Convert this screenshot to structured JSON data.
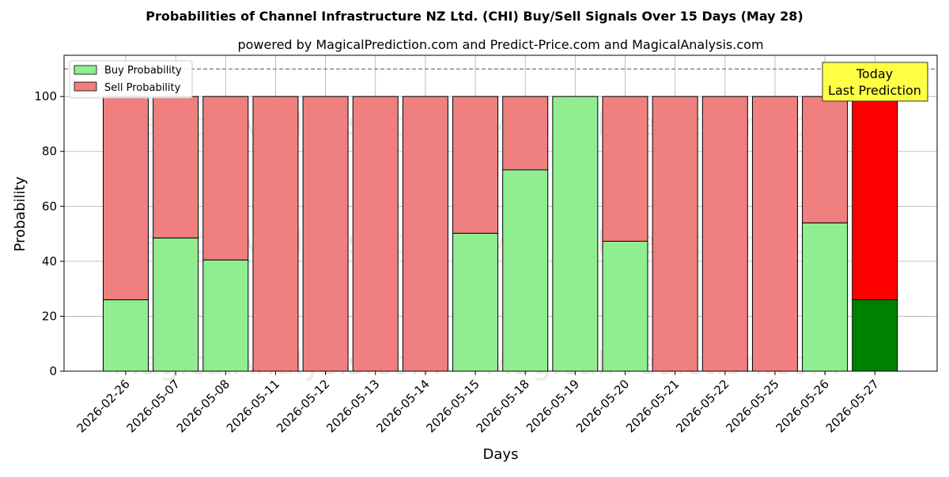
{
  "chart_data": {
    "type": "bar",
    "stacked": true,
    "title": "Probabilities of Channel Infrastructure NZ Ltd. (CHI) Buy/Sell Signals Over 15 Days (May 28)",
    "subtitle": "powered by MagicalPrediction.com and Predict-Price.com and MagicalAnalysis.com",
    "xlabel": "Days",
    "ylabel": "Probability",
    "ylim": [
      0,
      115
    ],
    "yticks": [
      0,
      20,
      40,
      60,
      80,
      100
    ],
    "reference_line": 110,
    "grid": true,
    "legend_position": "top-left",
    "categories": [
      "2026-02-26",
      "2026-05-07",
      "2026-05-08",
      "2026-05-11",
      "2026-05-12",
      "2026-05-13",
      "2026-05-14",
      "2026-05-15",
      "2026-05-18",
      "2026-05-19",
      "2026-05-20",
      "2026-05-21",
      "2026-05-22",
      "2026-05-25",
      "2026-05-26",
      "2026-05-27"
    ],
    "series": [
      {
        "name": "Buy Probability",
        "color": "#90ee90",
        "highlight_color": "#008000",
        "values": [
          26,
          48.5,
          40.5,
          0,
          0,
          0,
          0,
          50.2,
          73.3,
          100,
          47.3,
          0,
          0,
          0,
          54,
          26
        ]
      },
      {
        "name": "Sell Probability",
        "color": "#f08080",
        "highlight_color": "#ff0000",
        "values": [
          74,
          51.5,
          59.5,
          100,
          100,
          100,
          100,
          49.8,
          26.7,
          0,
          52.7,
          100,
          100,
          100,
          46,
          74
        ]
      }
    ],
    "annotation": {
      "line1": "Today",
      "line2": "Last Prediction",
      "color": "#ffff44"
    },
    "watermarks": [
      "MagicalAnalysis.com",
      "MagicalPrediction.com"
    ]
  }
}
